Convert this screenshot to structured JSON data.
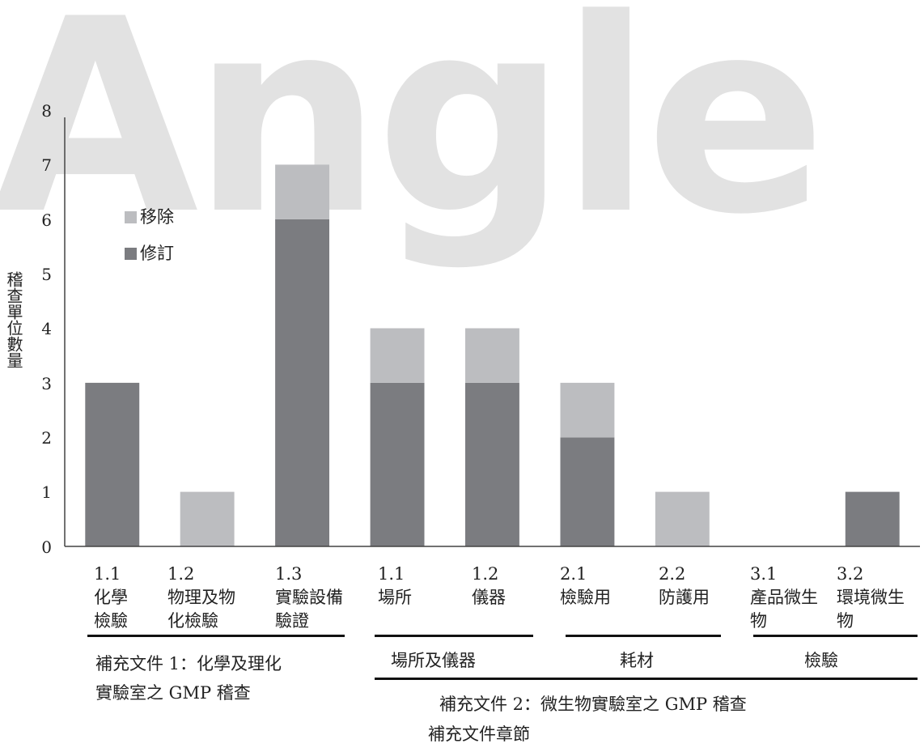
{
  "watermark": "Angle",
  "chart_data": {
    "type": "bar",
    "stacked": true,
    "ylabel": "稽查單位數量",
    "ylim": [
      0,
      8
    ],
    "yticks": [
      "0",
      "1",
      "2",
      "3",
      "4",
      "5",
      "6",
      "7",
      "8"
    ],
    "grid": false,
    "legend_position": "top-left",
    "xlabel": "補充文件章節",
    "categories": [
      "1.1\n化學\n檢驗",
      "1.2\n物理及物\n化檢驗",
      "1.3\n實驗設備\n驗證",
      "1.1\n場所",
      "1.2\n儀器",
      "2.1\n檢驗用",
      "2.2\n防護用",
      "3.1\n產品微生\n物",
      "3.2\n環境微生\n物"
    ],
    "series": [
      {
        "name": "修訂",
        "color": "#7b7c80",
        "values": [
          3,
          0,
          6,
          3,
          3,
          2,
          0,
          0,
          1
        ]
      },
      {
        "name": "移除",
        "color": "#bcbdc0",
        "values": [
          0,
          1,
          1,
          1,
          1,
          1,
          1,
          0,
          0
        ]
      }
    ],
    "groups": [
      {
        "label": "補充文件 1：化學及理化\n實驗室之 GMP 稽查"
      },
      {
        "label": "場所及儀器"
      },
      {
        "label": "耗材"
      },
      {
        "label": "檢驗"
      },
      {
        "label": "補充文件 2：微生物實驗室之 GMP 稽查"
      }
    ]
  }
}
